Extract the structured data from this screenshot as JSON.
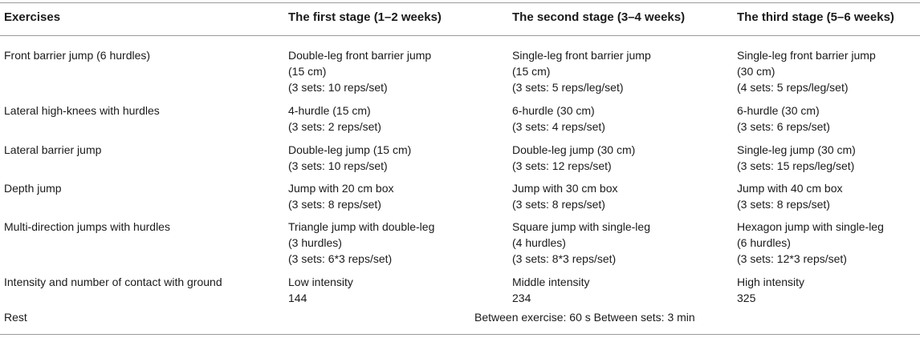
{
  "headers": [
    "Exercises",
    "The first stage (1–2 weeks)",
    "The second stage (3–4 weeks)",
    "The third stage (5–6 weeks)"
  ],
  "rows": [
    {
      "exercise": "Front barrier jump  (6 hurdles)",
      "stage1": [
        "Double-leg front barrier jump",
        "(15 cm)",
        "(3 sets: 10 reps/set)"
      ],
      "stage2": [
        "Single-leg front barrier jump",
        "(15 cm)",
        "(3 sets: 5 reps/leg/set)"
      ],
      "stage3": [
        "Single-leg front barrier jump",
        "(30 cm)",
        "(4 sets: 5 reps/leg/set)"
      ]
    },
    {
      "exercise": "Lateral high-knees with hurdles",
      "stage1": [
        "4-hurdle (15 cm)",
        "(3 sets: 2 reps/set)"
      ],
      "stage2": [
        "6-hurdle (30 cm)",
        "(3 sets: 4 reps/set)"
      ],
      "stage3": [
        "6-hurdle (30 cm)",
        "(3 sets: 6 reps/set)"
      ]
    },
    {
      "exercise": "Lateral barrier jump",
      "stage1": [
        "Double-leg jump (15 cm)",
        "(3 sets: 10 reps/set)"
      ],
      "stage2": [
        "Double-leg jump (30 cm)",
        "(3 sets: 12 reps/set)"
      ],
      "stage3": [
        "Single-leg jump (30 cm)",
        "(3 sets: 15 reps/leg/set)"
      ]
    },
    {
      "exercise": "Depth jump",
      "stage1": [
        "Jump with 20 cm box",
        "(3 sets: 8 reps/set)"
      ],
      "stage2": [
        "Jump with 30 cm box",
        "(3 sets: 8 reps/set)"
      ],
      "stage3": [
        "Jump with 40 cm box",
        "(3 sets: 8 reps/set)"
      ]
    },
    {
      "exercise": "Multi-direction jumps with hurdles",
      "stage1": [
        "Triangle jump with double-leg",
        "(3 hurdles)",
        "(3 sets: 6*3 reps/set)"
      ],
      "stage2": [
        "Square jump with single-leg",
        "(4 hurdles)",
        "(3 sets: 8*3 reps/set)"
      ],
      "stage3": [
        "Hexagon jump with single-leg",
        "(6 hurdles)",
        "(3 sets: 12*3 reps/set)"
      ]
    },
    {
      "exercise": "Intensity and number of contact with ground",
      "stage1": [
        "Low intensity",
        "144"
      ],
      "stage2": [
        "Middle intensity",
        "234"
      ],
      "stage3": [
        "High intensity",
        "325"
      ]
    }
  ],
  "rest": {
    "label": "Rest",
    "value": "Between exercise: 60 s   Between sets: 3 min"
  }
}
